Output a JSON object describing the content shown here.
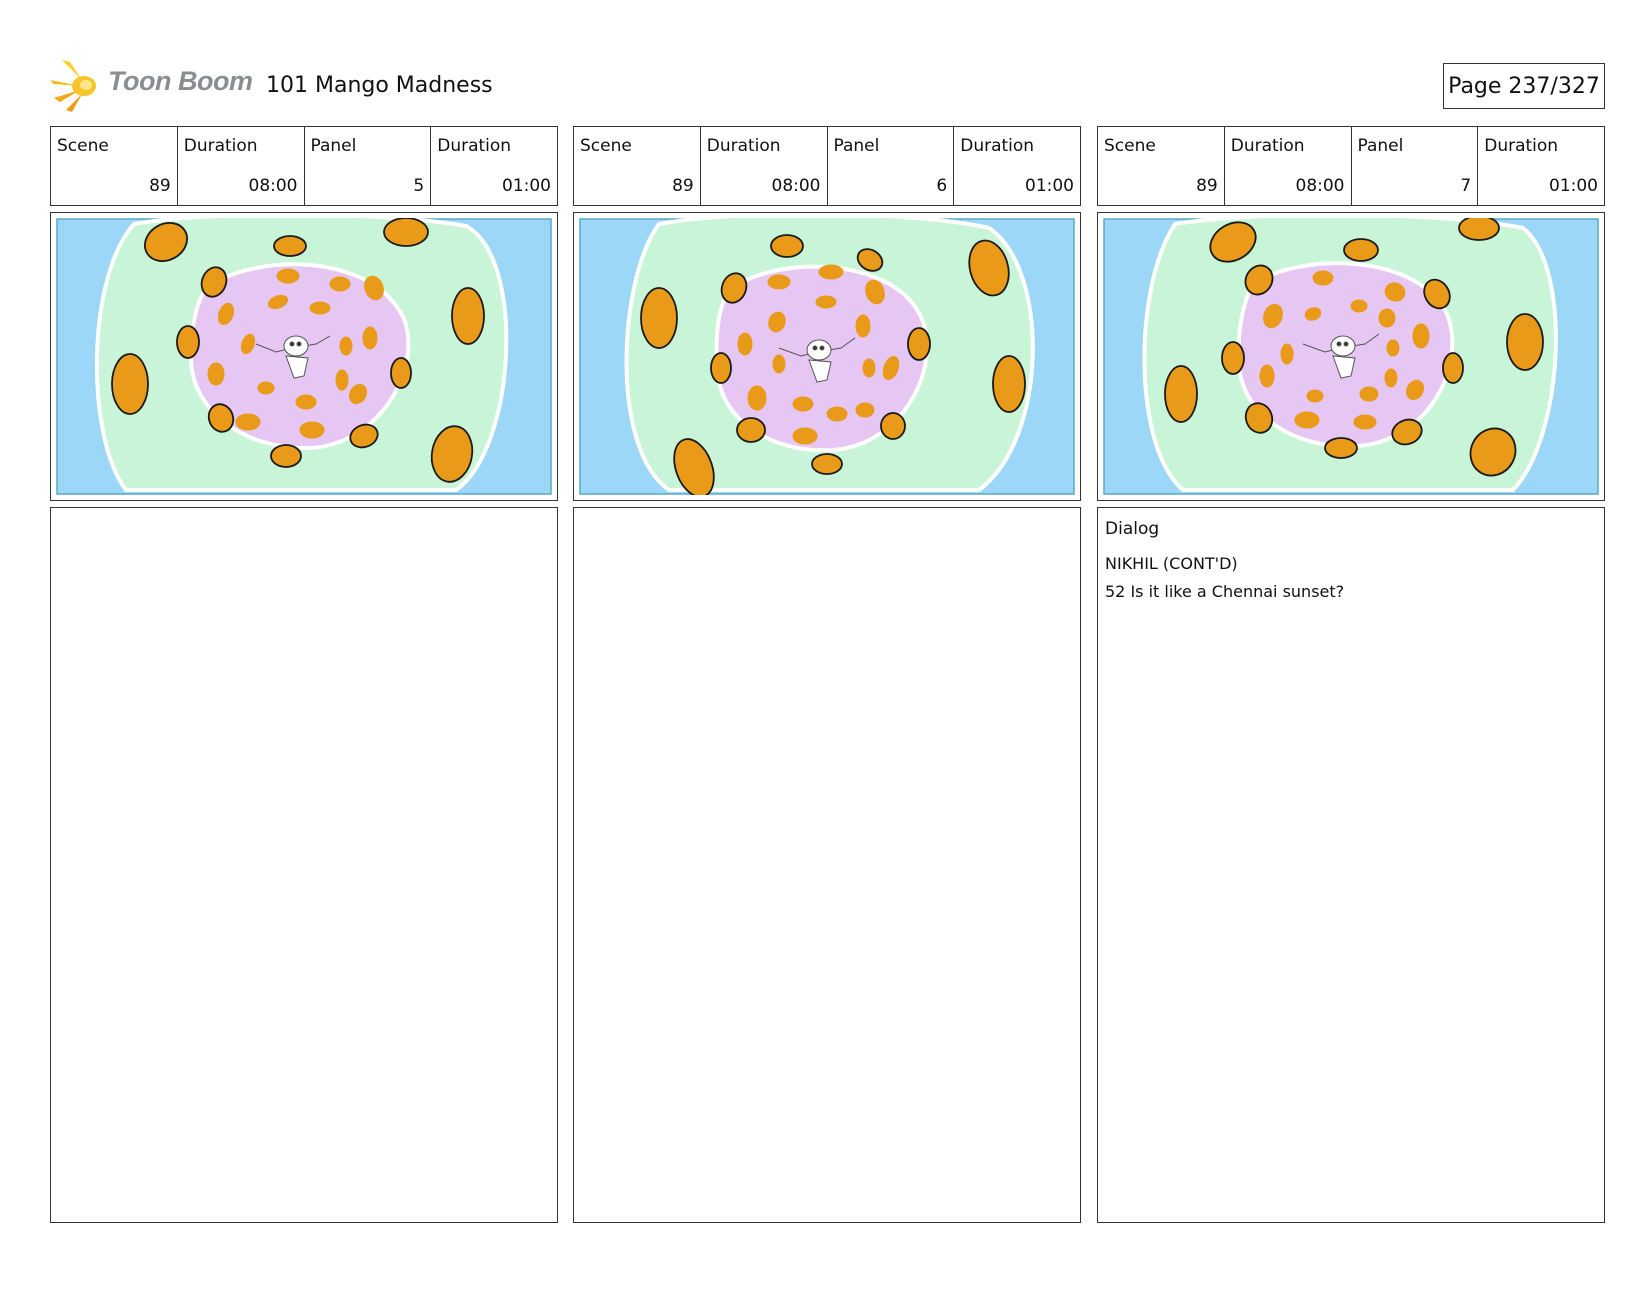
{
  "header": {
    "logo_text": "Toon Boom",
    "title": "101 Mango Madness",
    "page": "Page 237/327"
  },
  "labels": {
    "scene": "Scene",
    "duration": "Duration",
    "panel": "Panel"
  },
  "colors": {
    "sky": "#9dd7f7",
    "mint": "#c8f5d8",
    "lilac": "#e6c6f2",
    "mango": "#e89a18",
    "outline": "#1a1a1a"
  },
  "panels": [
    {
      "scene": "89",
      "scene_duration": "08:00",
      "panel": "5",
      "panel_duration": "01:00"
    },
    {
      "scene": "89",
      "scene_duration": "08:00",
      "panel": "6",
      "panel_duration": "01:00"
    },
    {
      "scene": "89",
      "scene_duration": "08:00",
      "panel": "7",
      "panel_duration": "01:00",
      "dialog": {
        "label": "Dialog",
        "speaker": "NIKHIL (CONT'D)",
        "line": "52 Is it like a Chennai sunset?"
      }
    }
  ]
}
